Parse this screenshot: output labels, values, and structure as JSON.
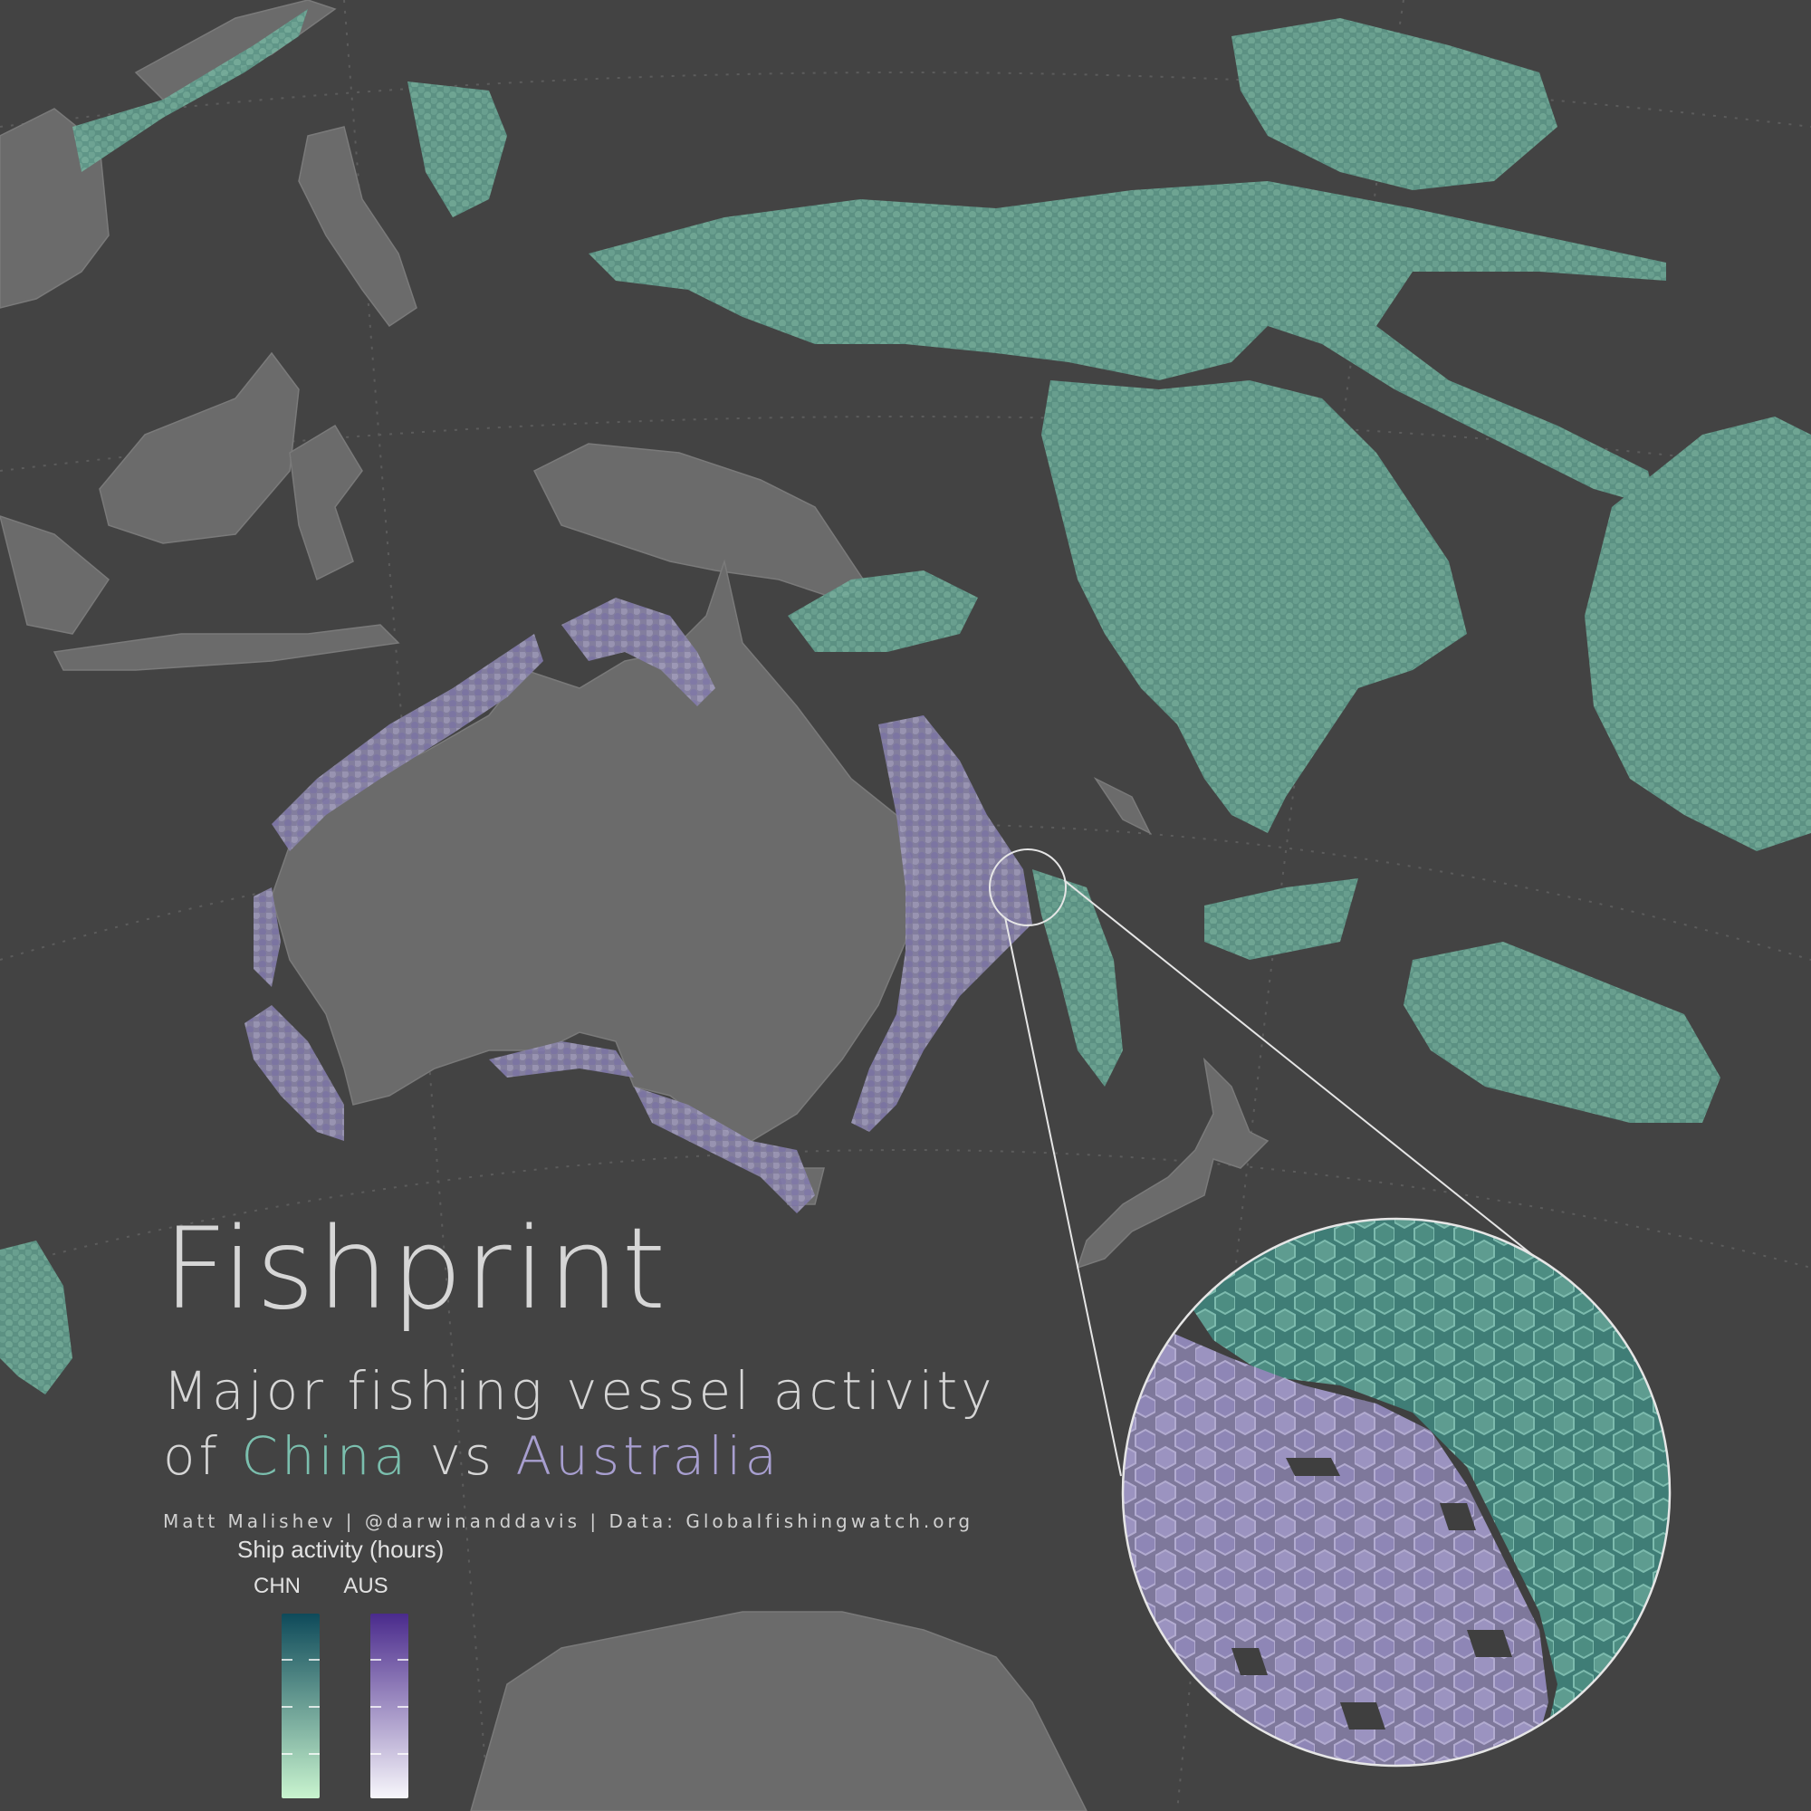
{
  "title": "Fishprint",
  "subtitle": {
    "line1": "Major fishing vessel activity",
    "line2_prefix": "of",
    "china": "China",
    "joiner": "vs",
    "australia": "Australia"
  },
  "credits": "Matt Malishev | @darwinanddavis | Data: Globalfishingwatch.org",
  "legend": {
    "title": "Ship activity (hours)",
    "columns": [
      {
        "label": "CHN",
        "gradient_top": "#0e4a5a",
        "gradient_bottom": "#c9f4cf"
      },
      {
        "label": "AUS",
        "gradient_top": "#4a2a8c",
        "gradient_bottom": "#f7f6fb"
      }
    ]
  },
  "colors": {
    "background": "#434343",
    "land": "#6b6b6b",
    "china": "#6aab9a",
    "australia": "#9a90c4"
  }
}
